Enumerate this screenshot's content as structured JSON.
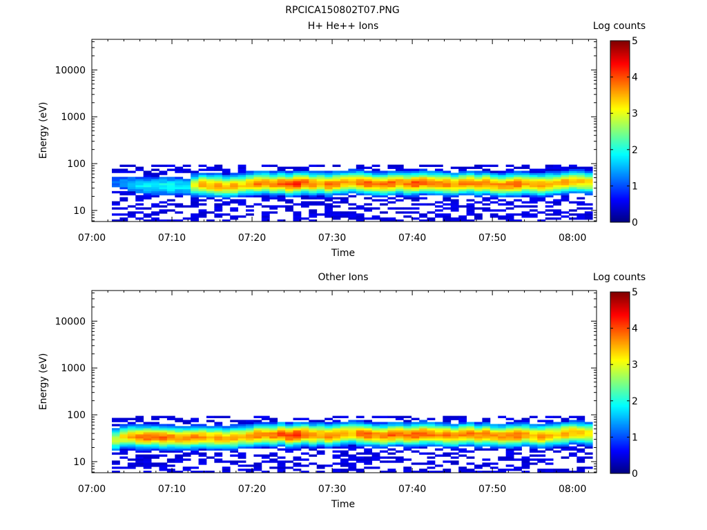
{
  "figure_title": "RPCICA150802T07.PNG",
  "colors": {
    "colormap": [
      "#00007f",
      "#0000ff",
      "#007fff",
      "#00ffff",
      "#7fff7f",
      "#ffff00",
      "#ff7f00",
      "#ff0000",
      "#7f0000"
    ],
    "background": "#ffffff",
    "axis": "#000000"
  },
  "chart_data": [
    {
      "type": "heatmap",
      "title": "H+ He++ Ions",
      "xlabel": "Time",
      "ylabel": "Energy (eV)",
      "x_ticks": [
        "07:00",
        "07:10",
        "07:20",
        "07:30",
        "07:40",
        "07:50",
        "08:00"
      ],
      "x_range_minutes": [
        0,
        63
      ],
      "y_scale": "log",
      "y_ticks": [
        "10",
        "100",
        "1000",
        "10000"
      ],
      "y_range_ev": [
        5.8,
        45000
      ],
      "data_time_range_minutes": [
        2.5,
        62.5
      ],
      "data_energy_range_ev": [
        5.8,
        95
      ],
      "colorbar": {
        "label": "Log counts",
        "ticks": [
          "0",
          "1",
          "2",
          "3",
          "4",
          "5"
        ],
        "range": [
          0,
          5
        ]
      },
      "peak_energy_ev": [
        40,
        38,
        36,
        34,
        34,
        34,
        34,
        33,
        33,
        32,
        35,
        36,
        35,
        34,
        33,
        34,
        35,
        37,
        38,
        39,
        37,
        38,
        36,
        38,
        39,
        37,
        38,
        36,
        38,
        40,
        41,
        40,
        38,
        37,
        36,
        38,
        39,
        37,
        38,
        40,
        39,
        38,
        37,
        36,
        38,
        39,
        37,
        38,
        36,
        35,
        36,
        37,
        38,
        36,
        35,
        37,
        38,
        40,
        42,
        41,
        40
      ],
      "peak_log_counts": [
        1.2,
        1.3,
        1.5,
        1.7,
        1.8,
        1.8,
        1.9,
        1.9,
        1.8,
        1.8,
        3.0,
        3.6,
        3.5,
        3.7,
        3.4,
        3.6,
        3.3,
        3.5,
        3.8,
        3.6,
        3.7,
        3.9,
        4.0,
        4.2,
        3.9,
        3.8,
        3.6,
        3.8,
        3.7,
        3.6,
        3.5,
        3.8,
        3.9,
        3.7,
        3.8,
        3.9,
        3.7,
        3.8,
        4.0,
        3.9,
        3.8,
        3.7,
        3.8,
        3.6,
        3.7,
        3.8,
        3.7,
        3.8,
        3.6,
        3.7,
        3.8,
        3.9,
        3.6,
        3.5,
        3.7,
        3.5,
        3.4,
        3.6,
        3.5,
        3.4,
        3.3
      ]
    },
    {
      "type": "heatmap",
      "title": "Other Ions",
      "xlabel": "Time",
      "ylabel": "Energy (eV)",
      "x_ticks": [
        "07:00",
        "07:10",
        "07:20",
        "07:30",
        "07:40",
        "07:50",
        "08:00"
      ],
      "x_range_minutes": [
        0,
        63
      ],
      "y_scale": "log",
      "y_ticks": [
        "10",
        "100",
        "1000",
        "10000"
      ],
      "y_range_ev": [
        5.8,
        45000
      ],
      "data_time_range_minutes": [
        2.5,
        62.5
      ],
      "data_energy_range_ev": [
        5.8,
        95
      ],
      "colorbar": {
        "label": "Log counts",
        "ticks": [
          "0",
          "1",
          "2",
          "3",
          "4",
          "5"
        ],
        "range": [
          0,
          5
        ]
      },
      "peak_energy_ev": [
        30,
        34,
        35,
        34,
        34,
        34,
        33,
        33,
        32,
        32,
        33,
        34,
        33,
        33,
        32,
        33,
        34,
        35,
        37,
        38,
        37,
        39,
        36,
        38,
        39,
        37,
        38,
        36,
        38,
        40,
        41,
        40,
        38,
        37,
        36,
        38,
        39,
        37,
        38,
        40,
        39,
        38,
        37,
        36,
        38,
        39,
        37,
        38,
        36,
        35,
        36,
        37,
        38,
        36,
        35,
        37,
        38,
        40,
        42,
        41,
        40
      ],
      "peak_log_counts": [
        3.0,
        3.2,
        3.6,
        3.8,
        3.9,
        3.8,
        3.9,
        3.8,
        3.7,
        3.8,
        3.7,
        3.6,
        3.5,
        3.6,
        3.5,
        3.6,
        3.4,
        3.6,
        3.8,
        3.7,
        3.8,
        4.0,
        4.1,
        4.2,
        3.9,
        3.8,
        3.6,
        3.8,
        3.7,
        3.6,
        3.5,
        3.8,
        3.9,
        3.7,
        3.8,
        3.9,
        3.7,
        3.8,
        4.0,
        3.9,
        3.8,
        3.7,
        3.8,
        3.6,
        3.7,
        3.8,
        3.7,
        3.8,
        3.6,
        3.7,
        3.8,
        3.9,
        3.6,
        3.5,
        3.7,
        3.5,
        3.4,
        3.6,
        3.5,
        3.4,
        3.3
      ]
    }
  ]
}
